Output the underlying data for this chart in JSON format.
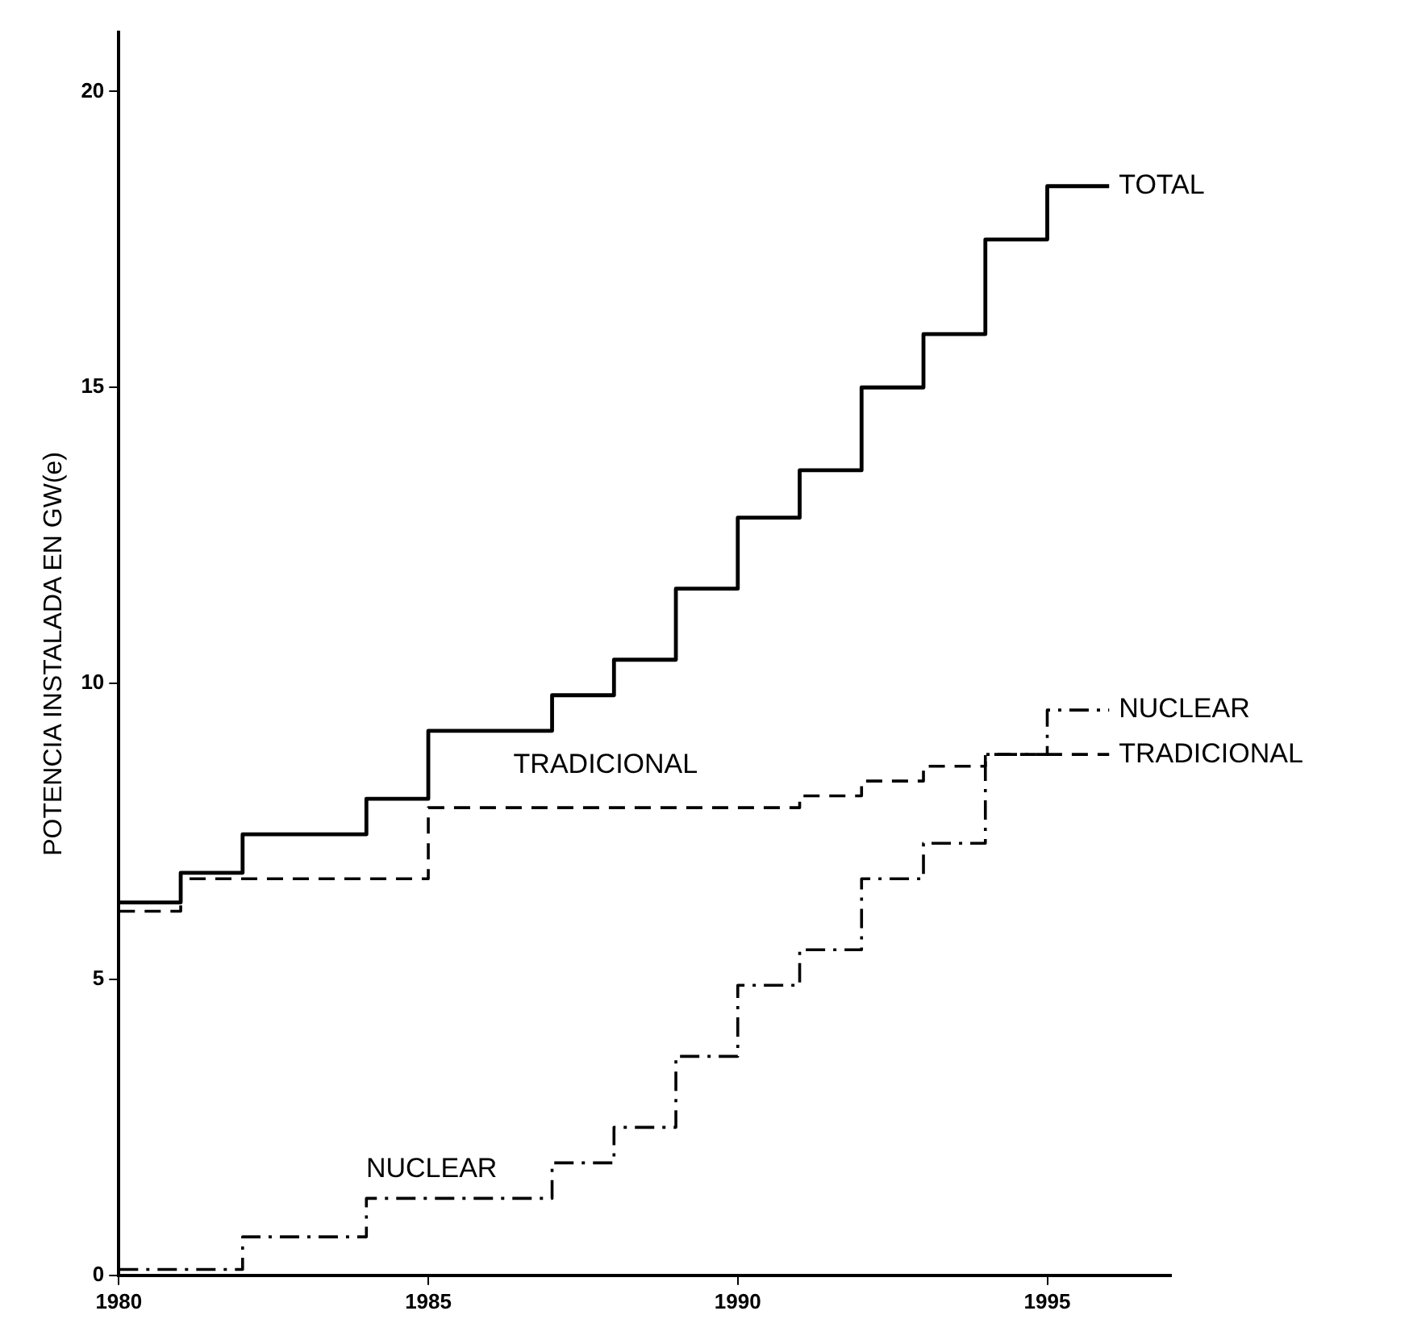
{
  "chart_data": {
    "type": "step",
    "ylabel": "POTENCIA INSTALADA EN GW(e)",
    "x": [
      1980,
      1981,
      1982,
      1983,
      1984,
      1985,
      1986,
      1987,
      1988,
      1989,
      1990,
      1991,
      1992,
      1993,
      1994,
      1995,
      1996
    ],
    "series": [
      {
        "name": "TOTAL",
        "color": "#000000",
        "line_style": "solid",
        "values": [
          6.3,
          6.8,
          7.45,
          7.45,
          8.05,
          9.2,
          9.2,
          9.8,
          10.4,
          11.6,
          12.8,
          13.6,
          15.0,
          15.9,
          17.5,
          18.4,
          18.4
        ]
      },
      {
        "name": "TRADICIONAL",
        "color": "#000000",
        "line_style": "dashed",
        "values": [
          6.15,
          6.7,
          6.7,
          6.7,
          6.7,
          7.9,
          7.9,
          7.9,
          7.9,
          7.9,
          7.9,
          8.1,
          8.35,
          8.6,
          8.8,
          8.8,
          8.8
        ]
      },
      {
        "name": "NUCLEAR",
        "color": "#000000",
        "line_style": "dashdot",
        "values": [
          0.1,
          0.1,
          0.65,
          0.65,
          1.3,
          1.3,
          1.3,
          1.9,
          2.5,
          3.7,
          4.9,
          5.5,
          6.7,
          7.3,
          8.8,
          9.55,
          9.55
        ]
      }
    ],
    "annotations": [
      "TRADICIONAL",
      "NUCLEAR"
    ],
    "xlim": [
      1980,
      1997
    ],
    "xticks": [
      1980,
      1985,
      1990,
      1995
    ],
    "ylim": [
      0,
      21
    ],
    "yticks": [
      0,
      5,
      10,
      15,
      20
    ],
    "grid": false,
    "legend": false,
    "marker": "none"
  }
}
